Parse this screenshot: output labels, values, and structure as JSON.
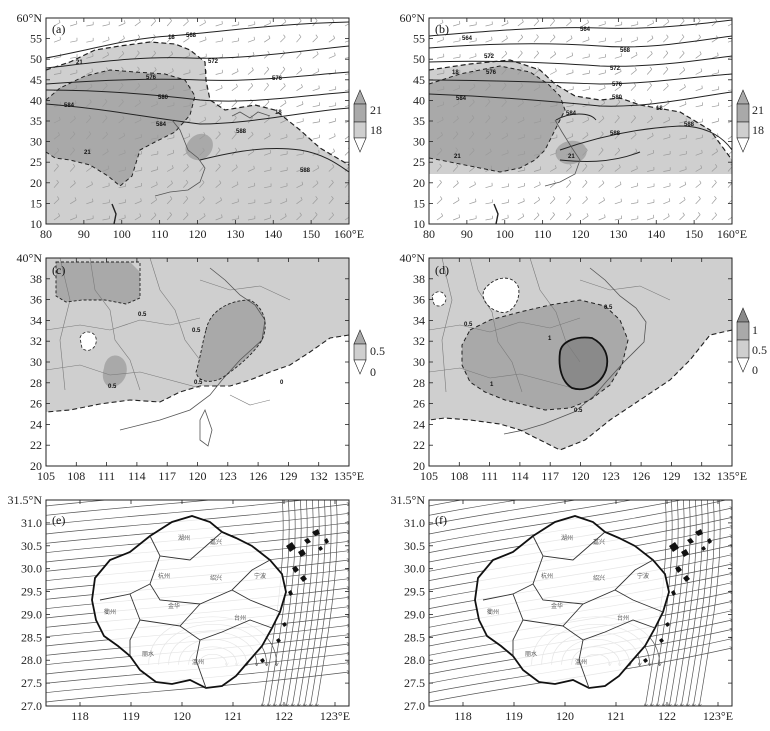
{
  "colors": {
    "shade_light": "#cfcfcf",
    "shade_mid": "#a9a9a9",
    "shade_dark": "#8a8a8a",
    "line": "#222222",
    "boundary": "#7a7a7a",
    "stream": "#555555"
  },
  "panels": [
    {
      "label": "(a)",
      "kind": "geopotential",
      "x_ticks": [
        "80",
        "90",
        "100",
        "110",
        "120",
        "130",
        "140",
        "150",
        "160°E"
      ],
      "y_ticks": [
        "60°N",
        "55",
        "50",
        "45",
        "40",
        "35",
        "30",
        "25",
        "20",
        "15",
        "10"
      ],
      "contour_labels": [
        "568",
        "572",
        "576",
        "580",
        "584",
        "588",
        "18",
        "21"
      ],
      "colorbar": {
        "ticks": [
          "21",
          "18"
        ]
      }
    },
    {
      "label": "(b)",
      "kind": "geopotential",
      "x_ticks": [
        "80",
        "90",
        "100",
        "110",
        "120",
        "130",
        "140",
        "150",
        "160°E"
      ],
      "y_ticks": [
        "60°N",
        "55",
        "50",
        "45",
        "40",
        "35",
        "30",
        "25",
        "20",
        "15",
        "10"
      ],
      "contour_labels": [
        "564",
        "568",
        "572",
        "576",
        "580",
        "584",
        "588",
        "18",
        "21"
      ],
      "colorbar": {
        "ticks": [
          "21",
          "18"
        ]
      }
    },
    {
      "label": "(c)",
      "kind": "regional",
      "x_ticks": [
        "105",
        "108",
        "111",
        "114",
        "117",
        "120",
        "123",
        "126",
        "129",
        "132",
        "135°E"
      ],
      "y_ticks": [
        "40°N",
        "38",
        "36",
        "34",
        "32",
        "30",
        "28",
        "26",
        "24",
        "22",
        "20"
      ],
      "contour_labels": [
        "0.5",
        "0"
      ],
      "colorbar": {
        "ticks": [
          "0.5",
          "0"
        ]
      }
    },
    {
      "label": "(d)",
      "kind": "regional",
      "x_ticks": [
        "105",
        "108",
        "111",
        "114",
        "117",
        "120",
        "123",
        "126",
        "129",
        "132",
        "135°E"
      ],
      "y_ticks": [
        "40°N",
        "38",
        "36",
        "34",
        "32",
        "30",
        "28",
        "26",
        "24",
        "22",
        "20"
      ],
      "contour_labels": [
        "1",
        "0.5",
        "0"
      ],
      "colorbar": {
        "ticks": [
          "1",
          "0.5",
          "0"
        ]
      }
    },
    {
      "label": "(e)",
      "kind": "streamline",
      "x_ticks": [
        "118",
        "119",
        "120",
        "121",
        "122",
        "123°E"
      ],
      "y_ticks": [
        "31.5°N",
        "31.0",
        "30.5",
        "30.0",
        "29.5",
        "29.0",
        "28.5",
        "28.0",
        "27.5",
        "27.0"
      ],
      "city_labels": [
        "湖州",
        "嘉兴",
        "杭州",
        "绍兴",
        "宁波",
        "衢州",
        "金华",
        "台州",
        "丽水",
        "温州"
      ]
    },
    {
      "label": "(f)",
      "kind": "streamline",
      "x_ticks": [
        "118",
        "119",
        "120",
        "121",
        "122",
        "123°E"
      ],
      "y_ticks": [
        "31.5°N",
        "31.0",
        "30.5",
        "30.0",
        "29.5",
        "29.0",
        "28.5",
        "28.0",
        "27.5",
        "27.0"
      ],
      "city_labels": [
        "湖州",
        "嘉兴",
        "杭州",
        "绍兴",
        "宁波",
        "衢州",
        "金华",
        "台州",
        "丽水",
        "温州"
      ]
    }
  ]
}
